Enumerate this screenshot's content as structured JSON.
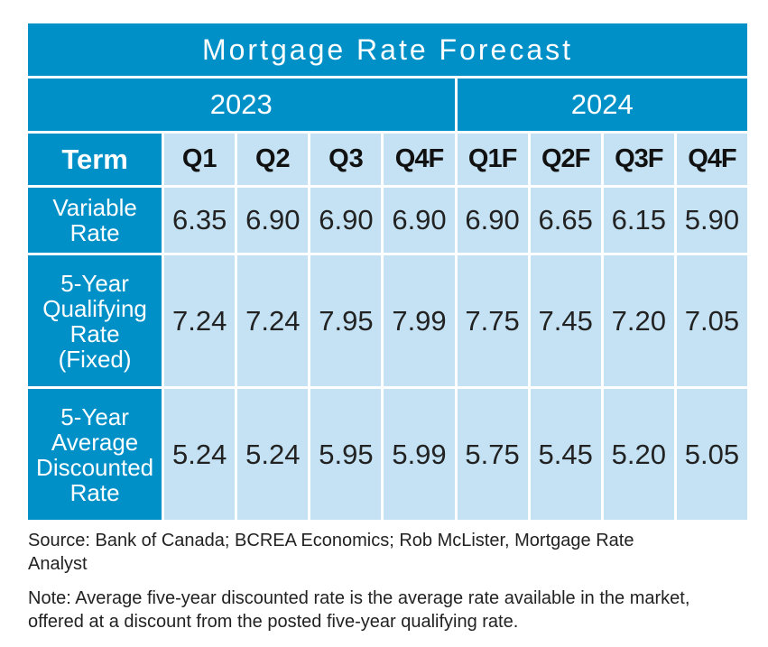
{
  "chart_data": {
    "type": "table",
    "title": "Mortgage Rate Forecast",
    "years": [
      {
        "label": "2023",
        "span": 4
      },
      {
        "label": "2024",
        "span": 4
      }
    ],
    "term_header": "Term",
    "columns": [
      "Q1",
      "Q2",
      "Q3",
      "Q4F",
      "Q1F",
      "Q2F",
      "Q3F",
      "Q4F"
    ],
    "rows": [
      {
        "label_lines": [
          "Variable",
          "Rate"
        ],
        "values": [
          "6.35",
          "6.90",
          "6.90",
          "6.90",
          "6.90",
          "6.65",
          "6.15",
          "5.90"
        ]
      },
      {
        "label_lines": [
          "5-Year",
          "Qualifying",
          "Rate",
          "(Fixed)"
        ],
        "values": [
          "7.24",
          "7.24",
          "7.95",
          "7.99",
          "7.75",
          "7.45",
          "7.20",
          "7.05"
        ]
      },
      {
        "label_lines": [
          "5-Year",
          "Average",
          "Discounted",
          "Rate"
        ],
        "values": [
          "5.24",
          "5.24",
          "5.95",
          "5.99",
          "5.75",
          "5.45",
          "5.20",
          "5.05"
        ]
      }
    ]
  },
  "notes": {
    "source": "Source: Bank of Canada; BCREA Economics; Rob McLister, Mortgage Rate Analyst",
    "note": "Note: Average five-year discounted rate is the average rate available in the market, offered at a discount from the posted five-year qualifying rate."
  },
  "colors": {
    "header_blue": "#0090c8",
    "cell_light_blue": "#c4e2f3",
    "text_dark": "#222222"
  }
}
